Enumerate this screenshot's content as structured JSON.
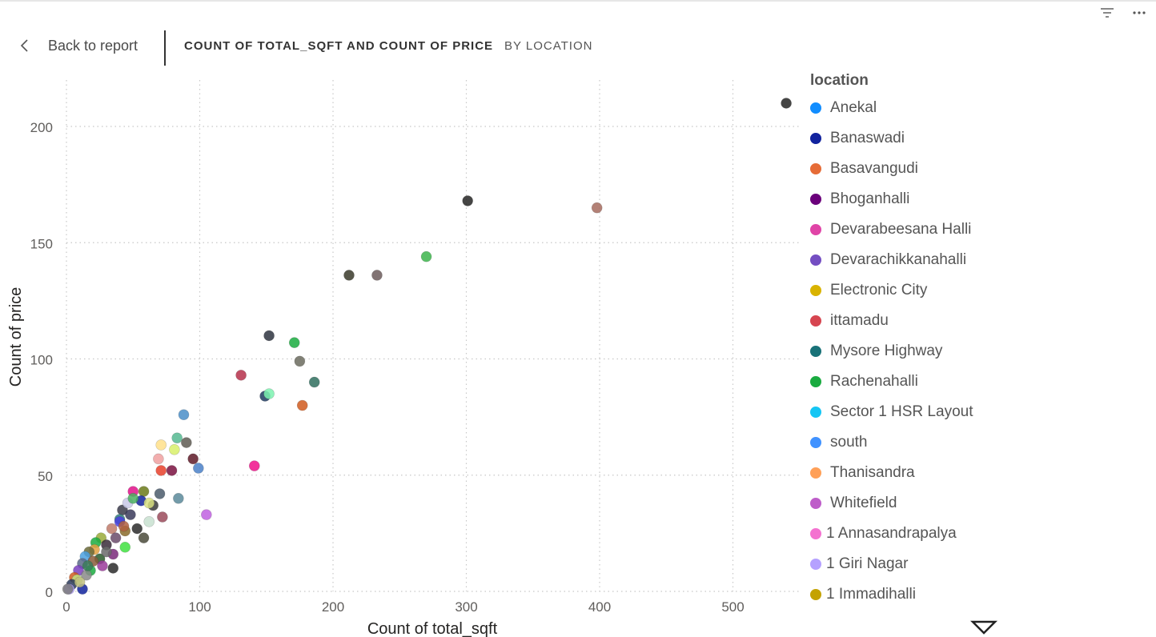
{
  "header": {
    "back_label": "Back to report",
    "title": "COUNT OF TOTAL_SQFT AND COUNT OF PRICE",
    "subtitle": "BY LOCATION"
  },
  "toolbar": {
    "filter_icon": "filter-icon",
    "more_icon": "more-options-icon"
  },
  "legend": {
    "title": "location",
    "more_icon": "chevron-down-icon",
    "items": [
      {
        "label": "Anekal",
        "color": "#118DFF"
      },
      {
        "label": "Banaswadi",
        "color": "#12239E"
      },
      {
        "label": "Basavangudi",
        "color": "#E66C37"
      },
      {
        "label": "Bhoganhalli",
        "color": "#6B007B"
      },
      {
        "label": "Devarabeesana Halli",
        "color": "#E044A7"
      },
      {
        "label": "Devarachikkanahalli",
        "color": "#744EC2"
      },
      {
        "label": "Electronic City",
        "color": "#D9B300"
      },
      {
        "label": "ittamadu",
        "color": "#D64550"
      },
      {
        "label": "Mysore Highway",
        "color": "#197278"
      },
      {
        "label": "Rachenahalli",
        "color": "#1AAB40"
      },
      {
        "label": "Sector 1 HSR Layout",
        "color": "#15C6F4"
      },
      {
        "label": "south",
        "color": "#4092FF"
      },
      {
        "label": "Thanisandra",
        "color": "#FFA058"
      },
      {
        "label": "Whitefield",
        "color": "#BE5DC9"
      },
      {
        "label": "1 Annasandrapalya",
        "color": "#F472D0"
      },
      {
        "label": "1 Giri Nagar",
        "color": "#B5A1FF"
      },
      {
        "label": "1 Immadihalli",
        "color": "#C4A200"
      }
    ]
  },
  "chart_data": {
    "type": "scatter",
    "title": "",
    "xlabel": "Count of total_sqft",
    "ylabel": "Count of price",
    "xlim": [
      0,
      550
    ],
    "ylim": [
      0,
      210
    ],
    "xticks": [
      0,
      100,
      200,
      300,
      400,
      500
    ],
    "yticks": [
      0,
      50,
      100,
      150,
      200
    ],
    "grid": true,
    "legend_position": "right",
    "points": [
      {
        "x": 540,
        "y": 210,
        "color": "#252423"
      },
      {
        "x": 301,
        "y": 168,
        "color": "#252423"
      },
      {
        "x": 398,
        "y": 165,
        "color": "#A66B5E"
      },
      {
        "x": 270,
        "y": 144,
        "color": "#3CB44B"
      },
      {
        "x": 212,
        "y": 136,
        "color": "#3A3A2A"
      },
      {
        "x": 233,
        "y": 136,
        "color": "#6B5B5B"
      },
      {
        "x": 152,
        "y": 110,
        "color": "#2E3440"
      },
      {
        "x": 171,
        "y": 107,
        "color": "#1AAB40"
      },
      {
        "x": 175,
        "y": 99,
        "color": "#6B6B5E"
      },
      {
        "x": 131,
        "y": 93,
        "color": "#B5304A"
      },
      {
        "x": 186,
        "y": 90,
        "color": "#2F6E5E"
      },
      {
        "x": 149,
        "y": 84,
        "color": "#1F3A5F"
      },
      {
        "x": 152,
        "y": 85,
        "color": "#7DF2B0"
      },
      {
        "x": 177,
        "y": 80,
        "color": "#D05A1E"
      },
      {
        "x": 88,
        "y": 76,
        "color": "#4A8EC8"
      },
      {
        "x": 83,
        "y": 66,
        "color": "#55B890"
      },
      {
        "x": 90,
        "y": 64,
        "color": "#5E5A52"
      },
      {
        "x": 71,
        "y": 63,
        "color": "#FFE08A"
      },
      {
        "x": 81,
        "y": 61,
        "color": "#D8F06A"
      },
      {
        "x": 95,
        "y": 57,
        "color": "#5E1A28"
      },
      {
        "x": 69,
        "y": 57,
        "color": "#F0A0A0"
      },
      {
        "x": 141,
        "y": 54,
        "color": "#F0108A"
      },
      {
        "x": 99,
        "y": 53,
        "color": "#4A80C8"
      },
      {
        "x": 71,
        "y": 52,
        "color": "#E8402A"
      },
      {
        "x": 79,
        "y": 52,
        "color": "#7A1040"
      },
      {
        "x": 58,
        "y": 43,
        "color": "#6B7A1A"
      },
      {
        "x": 50,
        "y": 43,
        "color": "#E0108A"
      },
      {
        "x": 70,
        "y": 42,
        "color": "#4A5A6B"
      },
      {
        "x": 84,
        "y": 40,
        "color": "#5A8A9A"
      },
      {
        "x": 56,
        "y": 39,
        "color": "#12239E"
      },
      {
        "x": 65,
        "y": 37,
        "color": "#3A3A3A"
      },
      {
        "x": 42,
        "y": 35,
        "color": "#3A3A4A"
      },
      {
        "x": 105,
        "y": 33,
        "color": "#C060E0"
      },
      {
        "x": 72,
        "y": 32,
        "color": "#9A4A5A"
      },
      {
        "x": 40,
        "y": 31,
        "color": "#2E7D7D"
      },
      {
        "x": 62,
        "y": 30,
        "color": "#C8E0D0"
      },
      {
        "x": 40,
        "y": 30,
        "color": "#4A40E0"
      },
      {
        "x": 53,
        "y": 27,
        "color": "#2A2A2A"
      },
      {
        "x": 34,
        "y": 27,
        "color": "#C07A6A"
      },
      {
        "x": 44,
        "y": 26,
        "color": "#8A6A2A"
      },
      {
        "x": 58,
        "y": 23,
        "color": "#4A4A3A"
      },
      {
        "x": 26,
        "y": 23,
        "color": "#9AAA3A"
      },
      {
        "x": 37,
        "y": 23,
        "color": "#6A4A6A"
      },
      {
        "x": 22,
        "y": 21,
        "color": "#1AAB40"
      },
      {
        "x": 30,
        "y": 20,
        "color": "#3A2A3A"
      },
      {
        "x": 44,
        "y": 19,
        "color": "#40E040"
      },
      {
        "x": 21,
        "y": 18,
        "color": "#E0A040"
      },
      {
        "x": 17,
        "y": 17,
        "color": "#6A6A3A"
      },
      {
        "x": 35,
        "y": 16,
        "color": "#7A2A7A"
      },
      {
        "x": 14,
        "y": 15,
        "color": "#4AA0E0"
      },
      {
        "x": 25,
        "y": 14,
        "color": "#2A5A2A"
      },
      {
        "x": 12,
        "y": 12,
        "color": "#5A6A8A"
      },
      {
        "x": 27,
        "y": 11,
        "color": "#9A3A9A"
      },
      {
        "x": 35,
        "y": 10,
        "color": "#2A2A2A"
      },
      {
        "x": 18,
        "y": 9,
        "color": "#1AAB40"
      },
      {
        "x": 9,
        "y": 9,
        "color": "#7A40C0"
      },
      {
        "x": 15,
        "y": 7,
        "color": "#8A8A8A"
      },
      {
        "x": 6,
        "y": 6,
        "color": "#D05A1E"
      },
      {
        "x": 8,
        "y": 5,
        "color": "#C0E080"
      },
      {
        "x": 4,
        "y": 3,
        "color": "#2A3A5A"
      },
      {
        "x": 12,
        "y": 1,
        "color": "#12239E"
      },
      {
        "x": 2,
        "y": 1,
        "color": "#B5A1FF"
      },
      {
        "x": 1,
        "y": 1,
        "color": "#7A7A7A"
      },
      {
        "x": 46,
        "y": 38,
        "color": "#C8C8E8"
      },
      {
        "x": 48,
        "y": 33,
        "color": "#3A3A5A"
      },
      {
        "x": 43,
        "y": 28,
        "color": "#B06040"
      },
      {
        "x": 62,
        "y": 38,
        "color": "#D8E080"
      },
      {
        "x": 50,
        "y": 40,
        "color": "#4AB060"
      },
      {
        "x": 30,
        "y": 17,
        "color": "#6A6A6A"
      },
      {
        "x": 20,
        "y": 13,
        "color": "#8A5A3A"
      },
      {
        "x": 16,
        "y": 11,
        "color": "#3A7A5A"
      },
      {
        "x": 10,
        "y": 4,
        "color": "#C0C080"
      }
    ]
  }
}
